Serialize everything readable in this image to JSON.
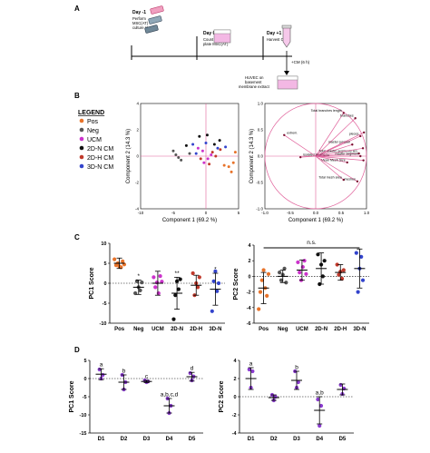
{
  "panel_labels": [
    "A",
    "B",
    "C",
    "D"
  ],
  "timeline": {
    "day_m1": "Day -1",
    "day_m1_desc": [
      "Perform",
      "MSC(AT)",
      "culture step"
    ],
    "day0": "Day 0",
    "day0_desc": [
      "Count and",
      "plate MSC(AT)"
    ],
    "day1": "Day +1",
    "day1_desc": "Harvest CM",
    "cm_label": "+CM  (6 h)",
    "huvec_desc": [
      "HUVEC on",
      "basement",
      "membrane extract"
    ]
  },
  "legend": {
    "title": "LEGEND",
    "items": [
      {
        "label": "Pos",
        "color": "#e8732a"
      },
      {
        "label": "Neg",
        "color": "#555555"
      },
      {
        "label": "UCM",
        "color": "#cc33cc"
      },
      {
        "label": "2D-N CM",
        "color": "#111111"
      },
      {
        "label": "2D-H CM",
        "color": "#c0392b"
      },
      {
        "label": "3D-N CM",
        "color": "#3344cc"
      }
    ]
  },
  "chart_data": [
    {
      "type": "scatter",
      "panel": "B-scores",
      "xlabel": "Component 1  (69.2 %)",
      "ylabel": "Component 2  (14.3 %)",
      "xlim": [
        -10,
        5
      ],
      "ylim": [
        -4,
        4
      ],
      "xticks": [
        "-10",
        "-5",
        "0",
        "5"
      ],
      "yticks": [
        "-4",
        "-2",
        "0",
        "2",
        "4"
      ],
      "series": [
        {
          "group": "Pos",
          "color": "#e8732a",
          "points": [
            [
              3.5,
              -0.8
            ],
            [
              4.2,
              -0.5
            ],
            [
              3.9,
              -1.2
            ],
            [
              2.8,
              -0.7
            ],
            [
              4.5,
              0.3
            ]
          ]
        },
        {
          "group": "Neg",
          "color": "#555555",
          "points": [
            [
              -4.6,
              0.1
            ],
            [
              -3.8,
              -0.3
            ],
            [
              -5.0,
              0.4
            ],
            [
              -2.5,
              0.2
            ],
            [
              -4.2,
              -0.1
            ]
          ]
        },
        {
          "group": "UCM",
          "color": "#cc33cc",
          "points": [
            [
              -0.5,
              0.4
            ],
            [
              0.3,
              -0.2
            ],
            [
              -1.2,
              0.6
            ],
            [
              0.8,
              0.1
            ],
            [
              -0.3,
              -0.5
            ]
          ]
        },
        {
          "group": "2D-N CM",
          "color": "#111111",
          "points": [
            [
              -1.0,
              1.5
            ],
            [
              1.3,
              0.9
            ],
            [
              -3.0,
              0.8
            ],
            [
              2.1,
              1.2
            ],
            [
              0.2,
              1.6
            ]
          ]
        },
        {
          "group": "2D-H CM",
          "color": "#c0392b",
          "points": [
            [
              1.5,
              0.0
            ],
            [
              0.5,
              -0.6
            ],
            [
              2.2,
              0.5
            ],
            [
              -0.8,
              -0.2
            ],
            [
              1.0,
              0.3
            ]
          ]
        },
        {
          "group": "3D-N CM",
          "color": "#3344cc",
          "points": [
            [
              -2.0,
              0.9
            ],
            [
              0.0,
              1.0
            ],
            [
              3.0,
              0.7
            ],
            [
              -1.5,
              0.2
            ],
            [
              1.8,
              0.6
            ]
          ]
        }
      ]
    },
    {
      "type": "scatter",
      "panel": "B-loadings",
      "xlabel": "Component 1  (69.2 %)",
      "ylabel": "Component 2  (14.3 %)",
      "xlim": [
        -1.0,
        1.0
      ],
      "ylim": [
        -1.0,
        1.0
      ],
      "xticks": [
        "-1.0",
        "-0.5",
        "0.0",
        "0.5",
        "1.0"
      ],
      "yticks": [
        "-1.0",
        "-0.5",
        "0.0",
        "0.5",
        "1.0"
      ],
      "vectors": [
        {
          "label": "Total branches length",
          "x": 0.55,
          "y": 0.82
        },
        {
          "label": "branches",
          "x": 0.78,
          "y": 0.72
        },
        {
          "label": "pieces",
          "x": 0.88,
          "y": 0.38
        },
        {
          "label": "master junction",
          "x": 0.72,
          "y": 0.22
        },
        {
          "label": "Total master segments len",
          "x": 0.85,
          "y": 0.05
        },
        {
          "label": "master segment",
          "x": 0.88,
          "y": 0.0
        },
        {
          "label": "Mean Mesh Size",
          "x": 0.62,
          "y": -0.12
        },
        {
          "label": "Total mesh area",
          "x": 0.55,
          "y": -0.45
        },
        {
          "label": "meshes",
          "x": 0.82,
          "y": -0.48
        },
        {
          "label": "isolated segments",
          "x": -0.3,
          "y": -0.02
        },
        {
          "label": "extrem.",
          "x": -0.62,
          "y": 0.4
        },
        {
          "label": "",
          "x": 0.95,
          "y": 0.45
        },
        {
          "label": "",
          "x": 0.93,
          "y": 0.15
        },
        {
          "label": "",
          "x": 0.94,
          "y": -0.08
        }
      ]
    },
    {
      "type": "scatter",
      "panel": "C-PC1",
      "ylabel": "PC1 Score",
      "categories": [
        "Pos",
        "Neg",
        "UCM",
        "2D-N",
        "2D-H",
        "3D-N"
      ],
      "ylim": [
        -10,
        10
      ],
      "yticks": [
        "-10",
        "-5",
        "0",
        "5",
        "10"
      ],
      "annotations": [
        "",
        "*",
        "",
        "**",
        "",
        "*"
      ],
      "groups": [
        {
          "color": "#e8732a",
          "mean": 5,
          "sd": 1.3,
          "points": [
            6.0,
            4.5,
            5.0,
            4.2,
            4.0,
            5.5,
            4.7
          ]
        },
        {
          "color": "#555555",
          "mean": -1.0,
          "sd": 1.8,
          "points": [
            -2.5,
            0.5,
            -1.0,
            -1.8,
            0.2
          ]
        },
        {
          "color": "#cc33cc",
          "mean": 0.0,
          "sd": 3.0,
          "points": [
            1.5,
            -1.0,
            0.2,
            -2.5,
            1.8,
            0.4
          ]
        },
        {
          "color": "#111111",
          "mean": -2.5,
          "sd": 4.0,
          "points": [
            -9.0,
            -3.0,
            0.5,
            -1.5,
            1.0
          ]
        },
        {
          "color": "#c0392b",
          "mean": -0.5,
          "sd": 2.5,
          "points": [
            2.5,
            -3.0,
            0.0,
            -1.0,
            1.5
          ]
        },
        {
          "color": "#3344cc",
          "mean": -1.5,
          "sd": 4.0,
          "points": [
            -7.0,
            0.5,
            3.0,
            -2.0,
            0.0
          ]
        }
      ]
    },
    {
      "type": "scatter",
      "panel": "C-PC2",
      "ylabel": "PC2 Score",
      "categories": [
        "Pos",
        "Neg",
        "UCM",
        "2D-N",
        "2D-H",
        "3D-N"
      ],
      "ylim": [
        -6,
        4
      ],
      "yticks": [
        "-6",
        "-4",
        "-2",
        "0",
        "2",
        "4"
      ],
      "significance": "n.s.",
      "groups": [
        {
          "color": "#e8732a",
          "mean": -1.5,
          "sd": 2.0,
          "points": [
            -4.2,
            -2.0,
            -0.5,
            0.8,
            -1.5,
            -2.5,
            0.3
          ]
        },
        {
          "color": "#555555",
          "mean": 0.0,
          "sd": 0.8,
          "points": [
            0.5,
            -0.5,
            0.2,
            1.0,
            -0.8
          ]
        },
        {
          "color": "#cc33cc",
          "mean": 0.8,
          "sd": 1.3,
          "points": [
            1.8,
            0.5,
            -0.5,
            1.2,
            2.0,
            0.3
          ]
        },
        {
          "color": "#111111",
          "mean": 1.0,
          "sd": 2.0,
          "points": [
            2.8,
            -1.0,
            1.5,
            0.0,
            2.0
          ]
        },
        {
          "color": "#c0392b",
          "mean": 0.5,
          "sd": 1.0,
          "points": [
            1.5,
            0.2,
            0.6,
            -0.3,
            0.8
          ]
        },
        {
          "color": "#3344cc",
          "mean": 1.0,
          "sd": 2.5,
          "points": [
            3.0,
            -2.0,
            1.0,
            2.5,
            -0.5
          ]
        }
      ]
    },
    {
      "type": "scatter",
      "panel": "D-PC1",
      "ylabel": "PC1 Score",
      "categories": [
        "D1",
        "D2",
        "D3",
        "D4",
        "D5"
      ],
      "ylim": [
        -15,
        5
      ],
      "yticks": [
        "-15",
        "-10",
        "-5",
        "0",
        "5"
      ],
      "letters": [
        "a",
        "b",
        "c",
        "a,b,c,d",
        "d"
      ],
      "groups": [
        {
          "color": "#8a3ccf",
          "mean": 1.2,
          "sd": 1.5,
          "points": [
            2.5,
            0.0,
            1.0
          ]
        },
        {
          "color": "#8a3ccf",
          "mean": -1.0,
          "sd": 2.0,
          "points": [
            1.0,
            -3.0,
            -1.0
          ]
        },
        {
          "color": "#8a3ccf",
          "mean": -0.8,
          "sd": 0.3,
          "points": [
            -0.5,
            -1.0,
            -0.8
          ]
        },
        {
          "color": "#8a3ccf",
          "mean": -7.5,
          "sd": 2.0,
          "points": [
            -5.5,
            -9.5,
            -7.5
          ]
        },
        {
          "color": "#8a3ccf",
          "mean": 0.5,
          "sd": 1.2,
          "points": [
            1.5,
            -0.5,
            0.6
          ]
        }
      ]
    },
    {
      "type": "scatter",
      "panel": "D-PC2",
      "ylabel": "PC2 Score",
      "categories": [
        "D1",
        "D2",
        "D3",
        "D4",
        "D5"
      ],
      "ylim": [
        -4,
        4
      ],
      "yticks": [
        "-4",
        "-2",
        "0",
        "2",
        "4"
      ],
      "letters": [
        "a",
        "",
        "b",
        "a,b",
        ""
      ],
      "groups": [
        {
          "color": "#8a3ccf",
          "mean": 2.0,
          "sd": 1.2,
          "points": [
            3.0,
            1.0,
            2.8
          ]
        },
        {
          "color": "#8a3ccf",
          "mean": -0.1,
          "sd": 0.3,
          "points": [
            0.2,
            -0.4,
            0.0
          ]
        },
        {
          "color": "#8a3ccf",
          "mean": 1.8,
          "sd": 1.0,
          "points": [
            2.8,
            1.0,
            1.6
          ]
        },
        {
          "color": "#8a3ccf",
          "mean": -1.5,
          "sd": 1.5,
          "points": [
            -0.3,
            -3.2,
            -1.0
          ]
        },
        {
          "color": "#8a3ccf",
          "mean": 0.8,
          "sd": 0.6,
          "points": [
            1.3,
            0.3,
            0.9
          ]
        }
      ]
    }
  ]
}
